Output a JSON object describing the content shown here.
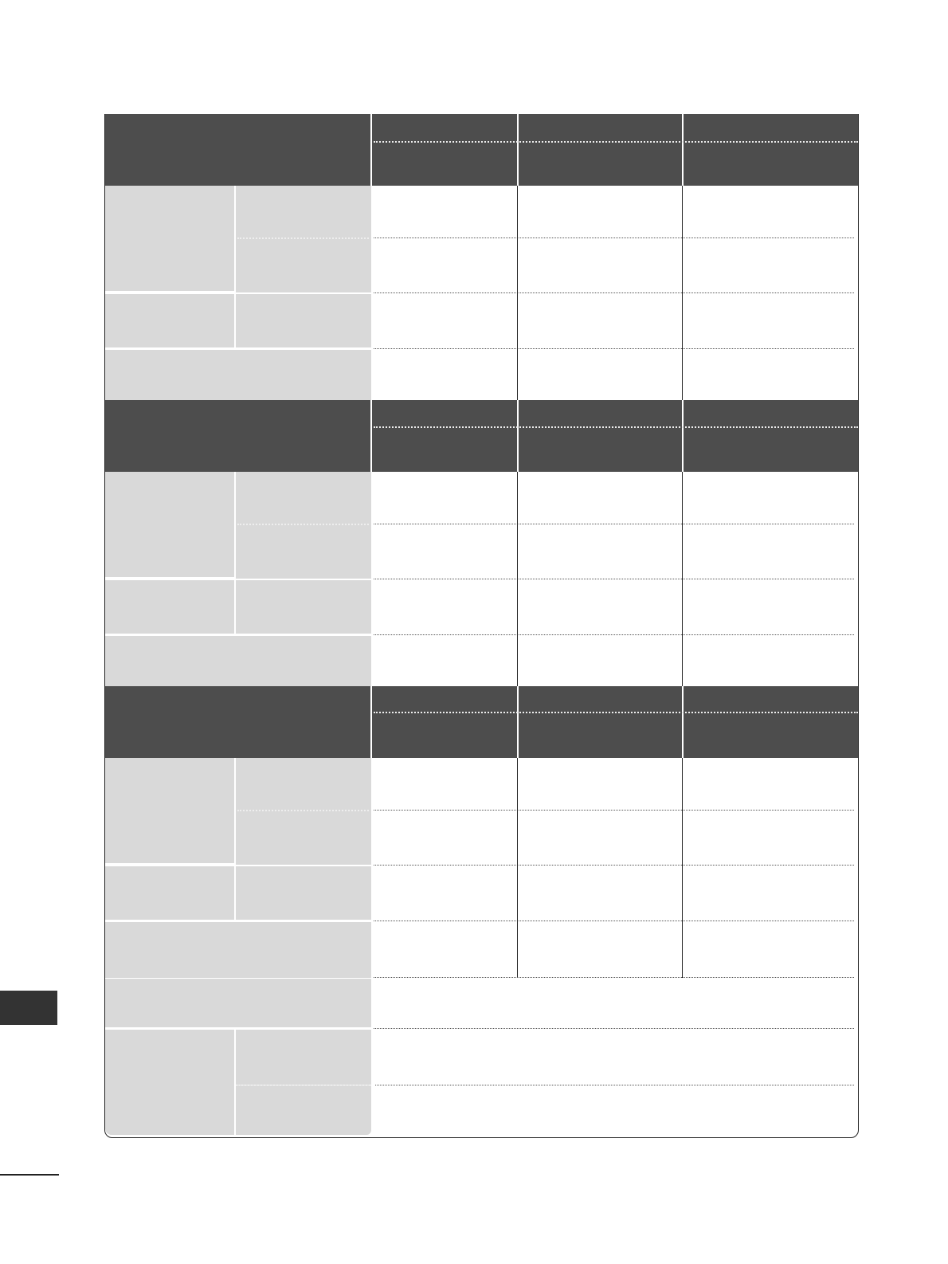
{
  "colors": {
    "header_fill": "#4d4d4d",
    "label_fill": "#d9d9d9",
    "side_tab": "#333333",
    "border": "#222222"
  }
}
